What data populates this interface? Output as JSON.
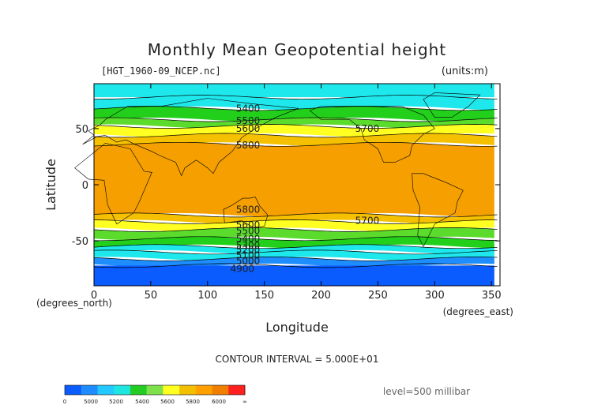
{
  "chart_data": {
    "type": "heatmap",
    "title": "Monthly Mean Geopotential height",
    "file_label": "[HGT_1960-09_NCEP.nc]",
    "units_label": "(units:m)",
    "xlabel": "Longitude",
    "ylabel": "Latitude",
    "x_unit_label": "(degrees_east)",
    "y_unit_label": "(degrees_north)",
    "xlim": [
      0,
      357.5
    ],
    "ylim": [
      -90,
      90
    ],
    "x_ticks": [
      0,
      50,
      100,
      150,
      200,
      250,
      300,
      350
    ],
    "y_ticks": [
      -50,
      0,
      50
    ],
    "contour_interval_text": "CONTOUR INTERVAL = 5.000E+01",
    "level_text": "level=500 millibar",
    "bands": [
      {
        "lat_north": 90,
        "lat_south": 78,
        "value_range": "5200-5300"
      },
      {
        "lat_north": 78,
        "lat_south": 68,
        "value_range": "5300-5400"
      },
      {
        "lat_north": 68,
        "lat_south": 58,
        "value_range": "5400-5500"
      },
      {
        "lat_north": 58,
        "lat_south": 52,
        "value_range": "5500-5600"
      },
      {
        "lat_north": 52,
        "lat_south": 44,
        "value_range": "5600-5700"
      },
      {
        "lat_north": 44,
        "lat_south": 36,
        "value_range": "5700-5800"
      },
      {
        "lat_north": 36,
        "lat_south": -27,
        "value_range": "5800-5900"
      },
      {
        "lat_north": -27,
        "lat_south": -33,
        "value_range": "5700-5800"
      },
      {
        "lat_north": -33,
        "lat_south": -40,
        "value_range": "5600-5700"
      },
      {
        "lat_north": -40,
        "lat_south": -48,
        "value_range": "5500-5600"
      },
      {
        "lat_north": -48,
        "lat_south": -55,
        "value_range": "5400-5500"
      },
      {
        "lat_north": -55,
        "lat_south": -60,
        "value_range": "5300-5400"
      },
      {
        "lat_north": -60,
        "lat_south": -66,
        "value_range": "5200-5300"
      },
      {
        "lat_north": -66,
        "lat_south": -72,
        "value_range": "5100-5200"
      },
      {
        "lat_north": -72,
        "lat_south": -90,
        "value_range": "4900-5100"
      }
    ],
    "contour_labels": [
      {
        "text": "5400",
        "lon": 125,
        "lat": 68
      },
      {
        "text": "5500",
        "lon": 125,
        "lat": 57
      },
      {
        "text": "5600",
        "lon": 125,
        "lat": 50
      },
      {
        "text": "5700",
        "lon": 230,
        "lat": 50
      },
      {
        "text": "5800",
        "lon": 125,
        "lat": 35
      },
      {
        "text": "5800",
        "lon": 125,
        "lat": -22
      },
      {
        "text": "5700",
        "lon": 230,
        "lat": -32
      },
      {
        "text": "5600",
        "lon": 125,
        "lat": -36
      },
      {
        "text": "5500",
        "lon": 125,
        "lat": -41
      },
      {
        "text": "5400",
        "lon": 125,
        "lat": -48
      },
      {
        "text": "5300",
        "lon": 125,
        "lat": -54
      },
      {
        "text": "5200",
        "lon": 125,
        "lat": -58
      },
      {
        "text": "5100",
        "lon": 125,
        "lat": -63
      },
      {
        "text": "5000",
        "lon": 125,
        "lat": -68
      },
      {
        "text": "4900",
        "lon": 120,
        "lat": -75
      }
    ],
    "colorbar": {
      "labels": [
        "0",
        "5000",
        "5200",
        "5400",
        "5600",
        "5800",
        "6000",
        "∞"
      ],
      "colors": [
        "#0a5cff",
        "#1e8cff",
        "#22c8ff",
        "#1de6e0",
        "#22cc22",
        "#7ee04a",
        "#ffff22",
        "#f2c000",
        "#ff9f00",
        "#f07f00",
        "#ff2020"
      ]
    },
    "colors": {
      "band_5200_5300": "#1ee8ec",
      "band_5300_5400": "#1ee8ec",
      "band_5400_5500": "#22d01c",
      "band_5500_5600": "#5bdc2c",
      "band_5600_5700": "#ffff22",
      "band_5700_5800": "#f4c000",
      "band_5800_5900": "#f5a000",
      "band_5100_5200": "#1e8eff",
      "band_4900_5100": "#0a5cff"
    }
  }
}
